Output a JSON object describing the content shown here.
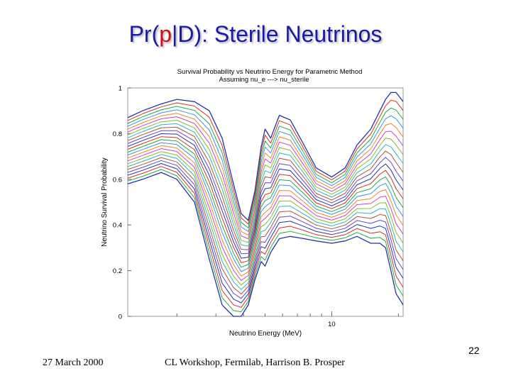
{
  "slide": {
    "title_prefix": "Pr(",
    "title_highlight": "p",
    "title_suffix": "|D): Sterile Neutrinos",
    "footer_date": "27 March 2000",
    "footer_text": "CL Workshop, Fermilab, Harrison B. Prosper",
    "page_number": "22"
  },
  "chart_data": {
    "type": "line",
    "title": "Survival Probability vs Neutrino Energy for Parametric Method",
    "subtitle": "Assuming nu_e ---> nu_sterile",
    "xlabel": "Neutrino Energy (MeV)",
    "ylabel": "Neutrino Survival Probability",
    "x_scale": "log",
    "xlim": [
      1.2,
      21
    ],
    "ylim": [
      0,
      1
    ],
    "y_ticks": [
      "0",
      "0.2",
      "0.4",
      "0.6",
      "0.8",
      "1"
    ],
    "x_ticks": [
      "10"
    ],
    "grid": false,
    "legend": "none",
    "series_colors": [
      "#2233aa",
      "#cc3322",
      "#22aa44",
      "#3399dd",
      "#ee8822",
      "#cc44bb",
      "#88bb22",
      "#22bbbb",
      "#aa5533",
      "#6644cc"
    ],
    "series_count": 24,
    "base_curve": {
      "x": [
        1.2,
        1.4,
        1.7,
        2.0,
        2.4,
        2.8,
        3.2,
        3.6,
        3.9,
        4.2,
        4.5,
        4.8,
        5.0,
        5.3,
        5.8,
        6.5,
        7.5,
        8.5,
        10.0,
        11.5,
        13.0,
        15.0,
        16.5,
        17.5,
        18.5,
        19.5,
        21.0
      ],
      "y_top": [
        0.87,
        0.9,
        0.93,
        0.95,
        0.94,
        0.9,
        0.78,
        0.58,
        0.45,
        0.42,
        0.55,
        0.74,
        0.82,
        0.78,
        0.88,
        0.86,
        0.75,
        0.65,
        0.61,
        0.65,
        0.75,
        0.82,
        0.9,
        0.95,
        0.98,
        0.98,
        0.94
      ],
      "y_bottom": [
        0.58,
        0.6,
        0.63,
        0.6,
        0.5,
        0.25,
        0.05,
        0.0,
        0.0,
        0.05,
        0.16,
        0.24,
        0.22,
        0.28,
        0.34,
        0.35,
        0.34,
        0.33,
        0.32,
        0.33,
        0.35,
        0.32,
        0.32,
        0.3,
        0.2,
        0.1,
        0.05
      ]
    }
  }
}
